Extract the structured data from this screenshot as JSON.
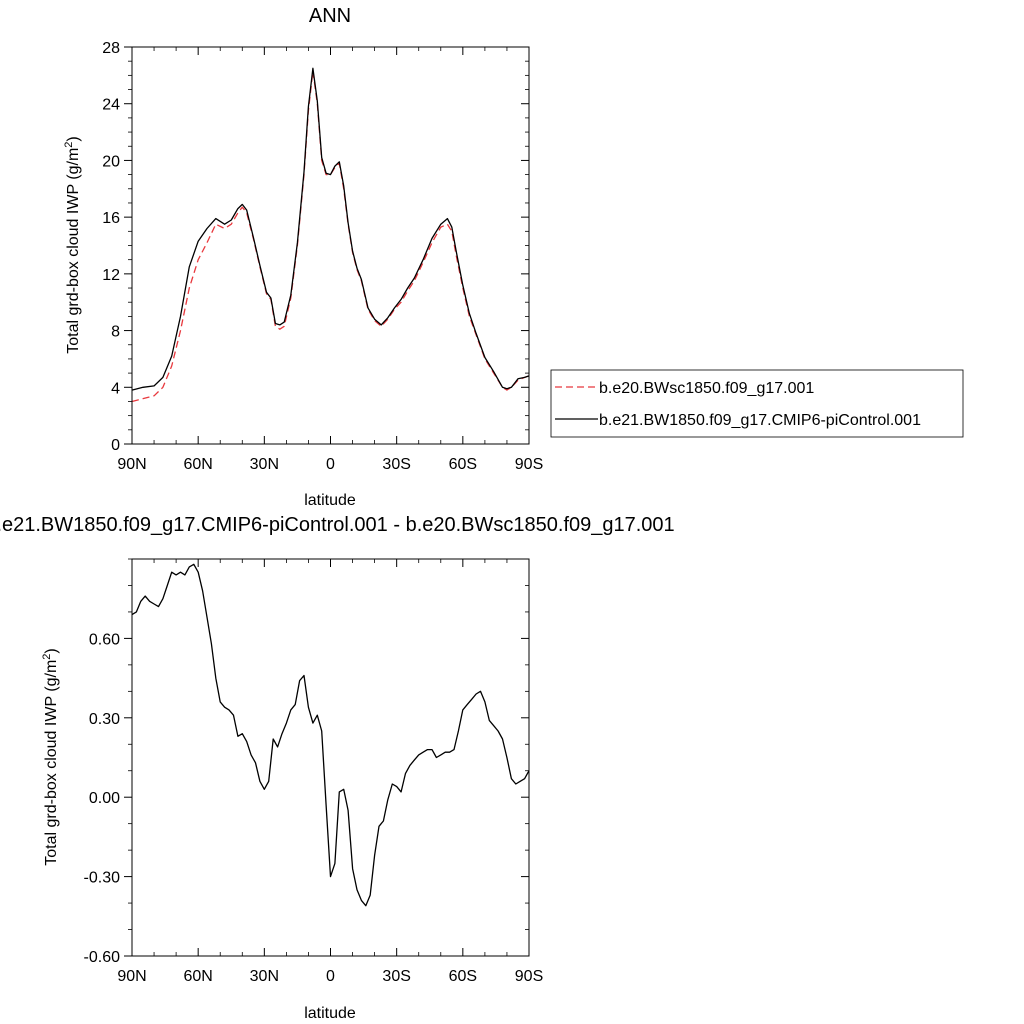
{
  "chart_data": [
    {
      "type": "line",
      "title": "ANN",
      "xlabel": "latitude",
      "ylabel": "Total grd-box cloud IWP (g/m",
      "ylabel_sup": "2",
      "ylabel_close": ")",
      "xlim": [
        90,
        -90
      ],
      "ylim": [
        0,
        28
      ],
      "x_ticks": [
        90,
        60,
        30,
        0,
        -30,
        -60,
        -90
      ],
      "x_tick_labels": [
        "90N",
        "60N",
        "30N",
        "0",
        "30S",
        "60S",
        "90S"
      ],
      "y_ticks": [
        0,
        4,
        8,
        12,
        16,
        20,
        24,
        28
      ],
      "y_tick_labels": [
        "0",
        "4",
        "8",
        "12",
        "16",
        "20",
        "24",
        "28"
      ],
      "legend_position": "right",
      "series": [
        {
          "name": "b.e20.BWsc1850.f09_g17.001",
          "color": "#e8383d",
          "style": "dashed",
          "x": [
            90,
            85,
            80,
            76,
            72,
            68,
            64,
            60,
            56,
            52,
            48,
            45,
            42,
            40,
            38,
            35,
            32,
            29,
            27,
            25,
            23,
            21,
            18,
            15,
            12,
            10,
            8,
            6,
            4,
            2,
            0,
            -2,
            -4,
            -6,
            -8,
            -10,
            -12,
            -14,
            -17,
            -20,
            -23,
            -26,
            -29,
            -32,
            -35,
            -38,
            -42,
            -46,
            -50,
            -53,
            -55,
            -57,
            -60,
            -63,
            -66,
            -70,
            -74,
            -78,
            -80,
            -82,
            -85,
            -88,
            -90
          ],
          "y": [
            3.0,
            3.2,
            3.4,
            4.0,
            5.5,
            8.0,
            11.0,
            13.0,
            14.2,
            15.5,
            15.2,
            15.5,
            16.3,
            16.7,
            16.3,
            14.5,
            12.5,
            10.6,
            10.2,
            8.3,
            8.1,
            8.3,
            10.3,
            14.0,
            19.0,
            23.5,
            26.3,
            24.0,
            20.0,
            19.0,
            19.0,
            19.5,
            19.8,
            18.0,
            15.5,
            13.5,
            12.3,
            11.5,
            9.5,
            8.7,
            8.3,
            8.8,
            9.5,
            10.0,
            10.8,
            11.5,
            12.8,
            14.2,
            15.3,
            15.5,
            15.0,
            13.3,
            11.0,
            9.0,
            7.7,
            6.0,
            5.0,
            4.0,
            3.8,
            4.0,
            4.5,
            4.7,
            4.8
          ]
        },
        {
          "name": "b.e21.BW1850.f09_g17.CMIP6-piControl.001",
          "color": "#000000",
          "style": "solid",
          "x": [
            90,
            85,
            80,
            76,
            72,
            68,
            64,
            60,
            56,
            52,
            48,
            45,
            42,
            40,
            38,
            35,
            32,
            29,
            27,
            25,
            23,
            21,
            18,
            15,
            12,
            10,
            8,
            6,
            4,
            2,
            0,
            -2,
            -4,
            -6,
            -8,
            -10,
            -12,
            -14,
            -17,
            -20,
            -23,
            -26,
            -29,
            -32,
            -35,
            -38,
            -42,
            -46,
            -50,
            -53,
            -55,
            -57,
            -60,
            -63,
            -66,
            -70,
            -74,
            -78,
            -80,
            -82,
            -85,
            -88,
            -90
          ],
          "y": [
            3.8,
            4.0,
            4.1,
            4.7,
            6.2,
            9.0,
            12.5,
            14.3,
            15.2,
            15.9,
            15.5,
            15.8,
            16.6,
            16.9,
            16.5,
            14.6,
            12.6,
            10.7,
            10.3,
            8.5,
            8.4,
            8.6,
            10.5,
            14.2,
            19.2,
            23.8,
            26.5,
            24.2,
            20.2,
            19.1,
            19.0,
            19.6,
            19.9,
            18.2,
            15.6,
            13.6,
            12.4,
            11.6,
            9.6,
            8.8,
            8.4,
            8.9,
            9.6,
            10.2,
            11.0,
            11.7,
            13.0,
            14.5,
            15.5,
            15.9,
            15.3,
            13.6,
            11.2,
            9.2,
            7.8,
            6.1,
            5.1,
            4.0,
            3.9,
            4.0,
            4.6,
            4.7,
            4.8
          ]
        }
      ]
    },
    {
      "type": "line",
      "title": "b.e21.BW1850.f09_g17.CMIP6-piControl.001 - b.e20.BWsc1850.f09_g17.001",
      "xlabel": "latitude",
      "ylabel": "Total grd-box cloud IWP (g/m",
      "ylabel_sup": "2",
      "ylabel_close": ")",
      "xlim": [
        90,
        -90
      ],
      "ylim": [
        -0.6,
        0.9
      ],
      "x_ticks": [
        90,
        60,
        30,
        0,
        -30,
        -60,
        -90
      ],
      "x_tick_labels": [
        "90N",
        "60N",
        "30N",
        "0",
        "30S",
        "60S",
        "90S"
      ],
      "y_ticks": [
        -0.6,
        -0.3,
        0.0,
        0.3,
        0.6
      ],
      "y_tick_labels": [
        "-0.60",
        "-0.30",
        "0.00",
        "0.30",
        "0.60"
      ],
      "series": [
        {
          "color": "#000000",
          "style": "solid",
          "x": [
            90,
            88,
            86,
            84,
            82,
            80,
            78,
            76,
            74,
            72,
            70,
            68,
            66,
            64,
            62,
            60,
            58,
            56,
            54,
            52,
            50,
            48,
            46,
            44,
            42,
            40,
            38,
            36,
            34,
            32,
            30,
            28,
            26,
            24,
            22,
            20,
            18,
            16,
            14,
            12,
            10,
            8,
            6,
            4,
            2,
            0,
            -2,
            -4,
            -6,
            -8,
            -10,
            -12,
            -14,
            -16,
            -18,
            -20,
            -22,
            -24,
            -26,
            -28,
            -30,
            -32,
            -34,
            -36,
            -38,
            -40,
            -42,
            -44,
            -46,
            -48,
            -50,
            -52,
            -54,
            -56,
            -58,
            -60,
            -62,
            -64,
            -66,
            -68,
            -70,
            -72,
            -74,
            -76,
            -78,
            -80,
            -82,
            -84,
            -86,
            -88,
            -90
          ],
          "y": [
            0.69,
            0.7,
            0.74,
            0.76,
            0.74,
            0.73,
            0.72,
            0.75,
            0.8,
            0.85,
            0.84,
            0.85,
            0.84,
            0.87,
            0.88,
            0.85,
            0.78,
            0.68,
            0.58,
            0.45,
            0.36,
            0.34,
            0.33,
            0.31,
            0.23,
            0.24,
            0.21,
            0.16,
            0.13,
            0.06,
            0.03,
            0.06,
            0.22,
            0.19,
            0.24,
            0.28,
            0.33,
            0.35,
            0.44,
            0.46,
            0.34,
            0.28,
            0.31,
            0.25,
            -0.03,
            -0.3,
            -0.25,
            0.02,
            0.03,
            -0.05,
            -0.27,
            -0.35,
            -0.39,
            -0.41,
            -0.37,
            -0.22,
            -0.11,
            -0.09,
            -0.01,
            0.05,
            0.04,
            0.02,
            0.09,
            0.12,
            0.14,
            0.16,
            0.17,
            0.18,
            0.18,
            0.15,
            0.16,
            0.17,
            0.17,
            0.18,
            0.25,
            0.33,
            0.35,
            0.37,
            0.39,
            0.4,
            0.36,
            0.29,
            0.27,
            0.25,
            0.22,
            0.15,
            0.07,
            0.05,
            0.06,
            0.07,
            0.1
          ]
        }
      ]
    }
  ]
}
